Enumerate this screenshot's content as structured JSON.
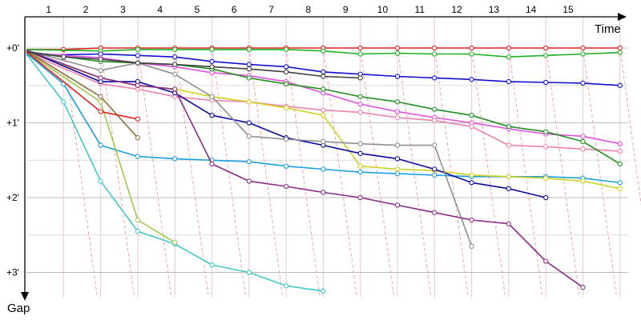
{
  "chart_data": {
    "type": "line",
    "title": "",
    "xlabel": "Time",
    "ylabel": "Gap",
    "x_ticks": [
      "1",
      "2",
      "3",
      "4",
      "5",
      "6",
      "7",
      "8",
      "9",
      "10",
      "11",
      "12",
      "13",
      "14",
      "15"
    ],
    "y_ticks": [
      "+0'",
      "+1'",
      "+2'",
      "+3'"
    ],
    "xlim": [
      0,
      16.5
    ],
    "ylim": [
      0,
      3.3
    ],
    "y_inverted": true,
    "grid": true,
    "series": [
      {
        "color": "#e02020",
        "points": [
          [
            0,
            0.02
          ],
          [
            1,
            0.02
          ],
          [
            2,
            0
          ],
          [
            3,
            0
          ],
          [
            4,
            0
          ],
          [
            5,
            0
          ],
          [
            6,
            0
          ],
          [
            7,
            0
          ],
          [
            8,
            0
          ],
          [
            9,
            0
          ],
          [
            10,
            0
          ],
          [
            11,
            0
          ],
          [
            12,
            0
          ],
          [
            13,
            0
          ],
          [
            14,
            0
          ],
          [
            15,
            0
          ],
          [
            16,
            0
          ]
        ]
      },
      {
        "color": "#20b020",
        "points": [
          [
            0,
            0.02
          ],
          [
            2,
            0.04
          ],
          [
            3,
            0.02
          ],
          [
            4,
            0.02
          ],
          [
            5,
            0.02
          ],
          [
            6,
            0.02
          ],
          [
            7,
            0.02
          ],
          [
            8,
            0.04
          ],
          [
            9,
            0.08
          ],
          [
            10,
            0.07
          ],
          [
            11,
            0.08
          ],
          [
            12,
            0.08
          ],
          [
            13,
            0.12
          ],
          [
            14,
            0.1
          ],
          [
            15,
            0.08
          ],
          [
            16,
            0.06
          ]
        ]
      },
      {
        "color": "#1010d0",
        "points": [
          [
            0,
            0.1
          ],
          [
            2,
            0.08
          ],
          [
            3,
            0.1
          ],
          [
            4,
            0.12
          ],
          [
            5,
            0.18
          ],
          [
            6,
            0.22
          ],
          [
            7,
            0.25
          ],
          [
            8,
            0.32
          ],
          [
            9,
            0.35
          ],
          [
            10,
            0.38
          ],
          [
            11,
            0.4
          ],
          [
            12,
            0.42
          ],
          [
            13,
            0.45
          ],
          [
            14,
            0.46
          ],
          [
            15,
            0.47
          ],
          [
            16,
            0.5
          ]
        ]
      },
      {
        "color": "#e050e0",
        "points": [
          [
            0,
            0.06
          ],
          [
            1,
            0.1
          ],
          [
            2,
            0.13
          ],
          [
            3,
            0.2
          ],
          [
            4,
            0.25
          ],
          [
            5,
            0.33
          ],
          [
            6,
            0.37
          ],
          [
            7,
            0.45
          ],
          [
            8,
            0.6
          ],
          [
            9,
            0.75
          ],
          [
            10,
            0.85
          ],
          [
            11,
            0.93
          ],
          [
            12,
            1.0
          ],
          [
            13,
            1.08
          ],
          [
            14,
            1.15
          ],
          [
            15,
            1.18
          ],
          [
            16,
            1.28
          ]
        ]
      },
      {
        "color": "#f080b0",
        "points": [
          [
            0,
            0.06
          ],
          [
            2,
            0.48
          ],
          [
            3,
            0.55
          ],
          [
            4,
            0.65
          ],
          [
            5,
            0.7
          ],
          [
            6,
            0.72
          ],
          [
            7,
            0.78
          ],
          [
            8,
            0.83
          ],
          [
            9,
            0.86
          ],
          [
            10,
            0.93
          ],
          [
            11,
            0.97
          ],
          [
            12,
            1.05
          ],
          [
            13,
            1.3
          ],
          [
            14,
            1.32
          ],
          [
            15,
            1.35
          ],
          [
            16,
            1.38
          ]
        ]
      },
      {
        "color": "#209020",
        "points": [
          [
            0,
            0.05
          ],
          [
            2,
            0.18
          ],
          [
            3,
            0.2
          ],
          [
            4,
            0.22
          ],
          [
            5,
            0.28
          ],
          [
            6,
            0.4
          ],
          [
            7,
            0.48
          ],
          [
            8,
            0.55
          ],
          [
            9,
            0.65
          ],
          [
            10,
            0.72
          ],
          [
            11,
            0.82
          ],
          [
            12,
            0.9
          ],
          [
            13,
            1.05
          ],
          [
            14,
            1.12
          ],
          [
            15,
            1.25
          ],
          [
            16,
            1.55
          ]
        ]
      },
      {
        "color": "#1a9ee0",
        "points": [
          [
            0,
            0.07
          ],
          [
            1,
            0.48
          ],
          [
            2,
            1.3
          ],
          [
            3,
            1.45
          ],
          [
            4,
            1.48
          ],
          [
            5,
            1.5
          ],
          [
            6,
            1.52
          ],
          [
            7,
            1.58
          ],
          [
            8,
            1.62
          ],
          [
            9,
            1.66
          ],
          [
            10,
            1.68
          ],
          [
            11,
            1.7
          ],
          [
            12,
            1.72
          ],
          [
            13,
            1.72
          ],
          [
            14,
            1.72
          ],
          [
            15,
            1.74
          ],
          [
            16,
            1.8
          ]
        ]
      },
      {
        "color": "#d0d020",
        "points": [
          [
            0,
            0.05
          ],
          [
            2,
            0.4
          ],
          [
            3,
            0.5
          ],
          [
            4,
            0.55
          ],
          [
            5,
            0.65
          ],
          [
            6,
            0.72
          ],
          [
            7,
            0.8
          ],
          [
            8,
            0.9
          ],
          [
            9,
            1.58
          ],
          [
            10,
            1.62
          ],
          [
            11,
            1.64
          ],
          [
            12,
            1.7
          ],
          [
            13,
            1.72
          ],
          [
            14,
            1.74
          ],
          [
            15,
            1.78
          ],
          [
            16,
            1.88
          ]
        ]
      },
      {
        "color": "#0a0aa0",
        "points": [
          [
            0,
            0.03
          ],
          [
            2,
            0.45
          ],
          [
            3,
            0.45
          ],
          [
            4,
            0.6
          ],
          [
            5,
            0.9
          ],
          [
            6,
            1.0
          ],
          [
            7,
            1.2
          ],
          [
            8,
            1.3
          ],
          [
            9,
            1.41
          ],
          [
            10,
            1.48
          ],
          [
            11,
            1.62
          ],
          [
            12,
            1.8
          ],
          [
            13,
            1.88
          ],
          [
            14,
            2.0
          ]
        ]
      },
      {
        "color": "#909090",
        "points": [
          [
            0,
            0.03
          ],
          [
            2,
            0.3
          ],
          [
            3,
            0.2
          ],
          [
            4,
            0.35
          ],
          [
            5,
            0.65
          ],
          [
            6,
            1.18
          ],
          [
            7,
            1.22
          ],
          [
            8,
            1.25
          ],
          [
            9,
            1.28
          ],
          [
            10,
            1.3
          ],
          [
            11,
            1.3
          ],
          [
            12,
            2.65
          ]
        ]
      },
      {
        "color": "#8b2a8b",
        "points": [
          [
            0,
            0.03
          ],
          [
            2,
            0.4
          ],
          [
            3,
            0.5
          ],
          [
            4,
            0.55
          ],
          [
            5,
            1.55
          ],
          [
            6,
            1.78
          ],
          [
            7,
            1.85
          ],
          [
            8,
            1.93
          ],
          [
            9,
            2.0
          ],
          [
            10,
            2.1
          ],
          [
            11,
            2.2
          ],
          [
            12,
            2.3
          ],
          [
            13,
            2.35
          ],
          [
            14,
            2.85
          ],
          [
            15,
            3.2
          ]
        ]
      },
      {
        "color": "#40c8c8",
        "points": [
          [
            0,
            0.08
          ],
          [
            1,
            0.72
          ],
          [
            2,
            1.78
          ],
          [
            3,
            2.45
          ],
          [
            4,
            2.62
          ],
          [
            5,
            2.9
          ],
          [
            6,
            3.0
          ],
          [
            7,
            3.18
          ],
          [
            8,
            3.25
          ]
        ]
      },
      {
        "color": "#a0c850",
        "points": [
          [
            0,
            0.05
          ],
          [
            2,
            0.72
          ],
          [
            3,
            2.3
          ],
          [
            4,
            2.6
          ]
        ]
      },
      {
        "color": "#8b7040",
        "points": [
          [
            0,
            0.04
          ],
          [
            2,
            0.65
          ],
          [
            3,
            1.2
          ]
        ]
      },
      {
        "color": "#404040",
        "points": [
          [
            0,
            0.05
          ],
          [
            1,
            0.12
          ],
          [
            2,
            0.15
          ],
          [
            3,
            0.2
          ],
          [
            4,
            0.22
          ],
          [
            5,
            0.25
          ],
          [
            6,
            0.28
          ],
          [
            7,
            0.32
          ],
          [
            8,
            0.38
          ],
          [
            9,
            0.4
          ]
        ]
      },
      {
        "color": "#e02020",
        "points": [
          [
            0,
            0.05
          ],
          [
            2,
            0.85
          ],
          [
            3,
            0.95
          ]
        ]
      }
    ]
  }
}
